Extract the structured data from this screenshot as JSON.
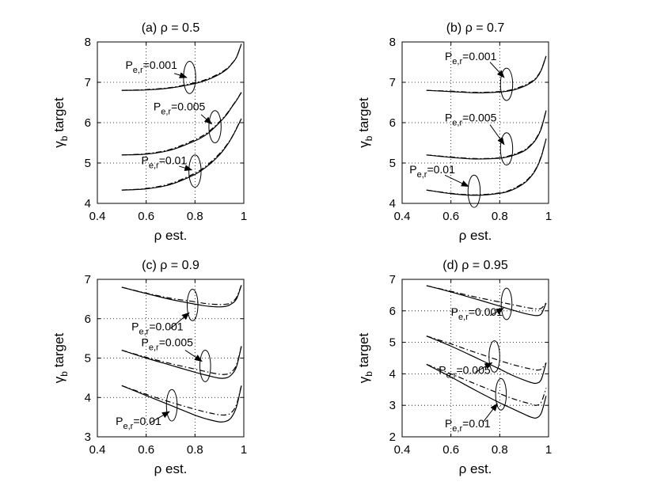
{
  "chart_data": [
    {
      "type": "line",
      "title": "(a) ρ = 0.5",
      "xlabel": "ρ est.",
      "ylabel": "target",
      "ylabel_symbol": "γ",
      "ylabel_sub": "b",
      "xlim": [
        0.4,
        1.0
      ],
      "ylim": [
        4,
        8
      ],
      "xticks": [
        "0.4",
        "0.6",
        "0.8",
        "1"
      ],
      "yticks": [
        "4",
        "5",
        "6",
        "7",
        "8"
      ],
      "grid": true,
      "series": [
        {
          "style": "solid",
          "x": [
            0.5,
            0.6,
            0.7,
            0.8,
            0.85,
            0.9,
            0.93,
            0.95,
            0.97,
            0.99
          ],
          "y": [
            6.8,
            6.81,
            6.86,
            6.97,
            7.06,
            7.2,
            7.32,
            7.45,
            7.62,
            7.95
          ]
        },
        {
          "style": "dashdot",
          "x": [
            0.5,
            0.6,
            0.7,
            0.8,
            0.85,
            0.9,
            0.93,
            0.95,
            0.97,
            0.99
          ],
          "y": [
            6.8,
            6.82,
            6.87,
            6.99,
            7.08,
            7.22,
            7.34,
            7.46,
            7.62,
            7.95
          ]
        },
        {
          "style": "solid",
          "x": [
            0.5,
            0.6,
            0.7,
            0.8,
            0.85,
            0.9,
            0.93,
            0.95,
            0.97,
            0.99
          ],
          "y": [
            5.2,
            5.22,
            5.32,
            5.55,
            5.72,
            6.0,
            6.2,
            6.38,
            6.55,
            6.75
          ]
        },
        {
          "style": "dashdot",
          "x": [
            0.5,
            0.6,
            0.7,
            0.8,
            0.85,
            0.9,
            0.93,
            0.95,
            0.97,
            0.99
          ],
          "y": [
            5.2,
            5.23,
            5.34,
            5.58,
            5.75,
            6.02,
            6.22,
            6.39,
            6.56,
            6.75
          ]
        },
        {
          "style": "solid",
          "x": [
            0.5,
            0.6,
            0.7,
            0.8,
            0.85,
            0.9,
            0.93,
            0.95,
            0.97,
            0.99
          ],
          "y": [
            4.33,
            4.36,
            4.47,
            4.72,
            4.92,
            5.2,
            5.43,
            5.62,
            5.85,
            6.1
          ]
        },
        {
          "style": "dashdot",
          "x": [
            0.5,
            0.6,
            0.7,
            0.8,
            0.85,
            0.9,
            0.93,
            0.95,
            0.97,
            0.99
          ],
          "y": [
            4.33,
            4.37,
            4.49,
            4.75,
            4.95,
            5.23,
            5.45,
            5.63,
            5.86,
            6.1
          ]
        }
      ],
      "annotations": [
        {
          "text": "=0.001",
          "sym": "P",
          "sub": "e,r",
          "tx": 0.515,
          "ty": 7.33,
          "ax1": 0.715,
          "ay1": 7.22,
          "ax2": 0.766,
          "ay2": 7.12,
          "ex": 0.778,
          "ey": 7.12,
          "erx": 0.025,
          "ery": 0.4
        },
        {
          "text": "=0.005",
          "sym": "P",
          "sub": "e,r",
          "tx": 0.63,
          "ty": 6.3,
          "ax1": 0.825,
          "ay1": 6.2,
          "ax2": 0.868,
          "ay2": 5.97,
          "ex": 0.882,
          "ey": 5.9,
          "erx": 0.025,
          "ery": 0.4
        },
        {
          "text": "=0.01",
          "sym": "P",
          "sub": "e,r",
          "tx": 0.58,
          "ty": 4.97,
          "ax1": 0.735,
          "ay1": 4.92,
          "ax2": 0.787,
          "ay2": 4.83,
          "ex": 0.8,
          "ey": 4.8,
          "erx": 0.025,
          "ery": 0.4
        }
      ]
    },
    {
      "type": "line",
      "title": "(b) ρ = 0.7",
      "xlabel": "ρ est.",
      "ylabel": "target",
      "ylabel_symbol": "γ",
      "ylabel_sub": "b",
      "xlim": [
        0.4,
        1.0
      ],
      "ylim": [
        4,
        8
      ],
      "xticks": [
        "0.4",
        "0.6",
        "0.8",
        "1"
      ],
      "yticks": [
        "4",
        "5",
        "6",
        "7",
        "8"
      ],
      "grid": true,
      "series": [
        {
          "style": "solid",
          "x": [
            0.5,
            0.6,
            0.7,
            0.8,
            0.85,
            0.9,
            0.93,
            0.95,
            0.97,
            0.99
          ],
          "y": [
            6.8,
            6.77,
            6.74,
            6.76,
            6.8,
            6.9,
            7.0,
            7.1,
            7.3,
            7.65
          ]
        },
        {
          "style": "dashdot",
          "x": [
            0.5,
            0.6,
            0.7,
            0.8,
            0.85,
            0.9,
            0.93,
            0.95,
            0.97,
            0.99
          ],
          "y": [
            6.8,
            6.78,
            6.75,
            6.77,
            6.82,
            6.92,
            7.02,
            7.12,
            7.31,
            7.65
          ]
        },
        {
          "style": "solid",
          "x": [
            0.5,
            0.6,
            0.7,
            0.8,
            0.85,
            0.9,
            0.93,
            0.95,
            0.97,
            0.99
          ],
          "y": [
            5.2,
            5.14,
            5.1,
            5.12,
            5.18,
            5.3,
            5.45,
            5.6,
            5.85,
            6.3
          ]
        },
        {
          "style": "dashdot",
          "x": [
            0.5,
            0.6,
            0.7,
            0.8,
            0.85,
            0.9,
            0.93,
            0.95,
            0.97,
            0.99
          ],
          "y": [
            5.2,
            5.15,
            5.11,
            5.13,
            5.2,
            5.32,
            5.47,
            5.62,
            5.87,
            6.3
          ]
        },
        {
          "style": "solid",
          "x": [
            0.5,
            0.6,
            0.7,
            0.8,
            0.85,
            0.9,
            0.93,
            0.95,
            0.97,
            0.99
          ],
          "y": [
            4.33,
            4.24,
            4.2,
            4.25,
            4.33,
            4.5,
            4.68,
            4.86,
            5.15,
            5.6
          ]
        },
        {
          "style": "dashdot",
          "x": [
            0.5,
            0.6,
            0.7,
            0.8,
            0.85,
            0.9,
            0.93,
            0.95,
            0.97,
            0.99
          ],
          "y": [
            4.33,
            4.25,
            4.21,
            4.26,
            4.35,
            4.52,
            4.7,
            4.88,
            5.17,
            5.6
          ]
        }
      ],
      "annotations": [
        {
          "text": "=0.001",
          "sym": "P",
          "sub": "e,r",
          "tx": 0.575,
          "ty": 7.55,
          "ax1": 0.76,
          "ay1": 7.5,
          "ax2": 0.818,
          "ay2": 7.12,
          "ex": 0.828,
          "ey": 6.95,
          "erx": 0.025,
          "ery": 0.4
        },
        {
          "text": "=0.005",
          "sym": "P",
          "sub": "e,r",
          "tx": 0.575,
          "ty": 6.03,
          "ax1": 0.76,
          "ay1": 5.95,
          "ax2": 0.818,
          "ay2": 5.46,
          "ex": 0.828,
          "ey": 5.35,
          "erx": 0.025,
          "ery": 0.4
        },
        {
          "text": "=0.01",
          "sym": "P",
          "sub": "e,r",
          "tx": 0.43,
          "ty": 4.75,
          "ax1": 0.575,
          "ay1": 4.7,
          "ax2": 0.672,
          "ay2": 4.42,
          "ex": 0.695,
          "ey": 4.3,
          "erx": 0.025,
          "ery": 0.4
        }
      ]
    },
    {
      "type": "line",
      "title": "(c) ρ = 0.9",
      "xlabel": "ρ est.",
      "ylabel": "target",
      "ylabel_symbol": "γ",
      "ylabel_sub": "b",
      "xlim": [
        0.4,
        1.0
      ],
      "ylim": [
        3,
        7
      ],
      "xticks": [
        "0.4",
        "0.6",
        "0.8",
        "1"
      ],
      "yticks": [
        "3",
        "4",
        "5",
        "6",
        "7"
      ],
      "grid": true,
      "series": [
        {
          "style": "solid",
          "x": [
            0.5,
            0.6,
            0.7,
            0.8,
            0.85,
            0.9,
            0.93,
            0.95,
            0.97,
            0.99
          ],
          "y": [
            6.8,
            6.64,
            6.49,
            6.37,
            6.32,
            6.3,
            6.32,
            6.38,
            6.5,
            6.85
          ]
        },
        {
          "style": "dashdot",
          "x": [
            0.5,
            0.6,
            0.7,
            0.8,
            0.85,
            0.9,
            0.93,
            0.95,
            0.97,
            0.99
          ],
          "y": [
            6.8,
            6.65,
            6.52,
            6.43,
            6.38,
            6.36,
            6.37,
            6.42,
            6.54,
            6.85
          ]
        },
        {
          "style": "solid",
          "x": [
            0.5,
            0.6,
            0.7,
            0.8,
            0.85,
            0.9,
            0.93,
            0.95,
            0.97,
            0.99
          ],
          "y": [
            5.2,
            5.0,
            4.82,
            4.64,
            4.56,
            4.49,
            4.5,
            4.58,
            4.78,
            5.3
          ]
        },
        {
          "style": "dashdot",
          "x": [
            0.5,
            0.6,
            0.7,
            0.8,
            0.85,
            0.9,
            0.93,
            0.95,
            0.97,
            0.99
          ],
          "y": [
            5.2,
            5.02,
            4.86,
            4.72,
            4.65,
            4.59,
            4.59,
            4.65,
            4.83,
            5.3
          ]
        },
        {
          "style": "solid",
          "x": [
            0.5,
            0.6,
            0.7,
            0.8,
            0.85,
            0.9,
            0.93,
            0.95,
            0.97,
            0.99
          ],
          "y": [
            4.3,
            4.05,
            3.8,
            3.55,
            3.45,
            3.38,
            3.4,
            3.5,
            3.76,
            4.3
          ]
        },
        {
          "style": "dashdot",
          "x": [
            0.5,
            0.6,
            0.7,
            0.8,
            0.85,
            0.9,
            0.93,
            0.95,
            0.97,
            0.99
          ],
          "y": [
            4.3,
            4.08,
            3.88,
            3.7,
            3.62,
            3.56,
            3.56,
            3.62,
            3.82,
            4.3
          ]
        }
      ],
      "annotations": [
        {
          "text": "=0.001",
          "sym": "P",
          "sub": "e,r",
          "tx": 0.54,
          "ty": 5.7,
          "ax1": 0.7,
          "ay1": 5.75,
          "ax2": 0.776,
          "ay2": 6.15,
          "ex": 0.79,
          "ey": 6.35,
          "erx": 0.022,
          "ery": 0.4
        },
        {
          "text": "=0.005",
          "sym": "P",
          "sub": "e,r",
          "tx": 0.58,
          "ty": 5.3,
          "ax1": 0.76,
          "ay1": 5.2,
          "ax2": 0.828,
          "ay2": 4.92,
          "ex": 0.842,
          "ey": 4.8,
          "erx": 0.022,
          "ery": 0.4
        },
        {
          "text": "=0.01",
          "sym": "P",
          "sub": "e,r",
          "tx": 0.475,
          "ty": 3.3,
          "ax1": 0.615,
          "ay1": 3.35,
          "ax2": 0.695,
          "ay2": 3.64,
          "ex": 0.705,
          "ey": 3.8,
          "erx": 0.022,
          "ery": 0.4
        }
      ]
    },
    {
      "type": "line",
      "title": "(d) ρ = 0.95",
      "xlabel": "ρ est.",
      "ylabel": "target",
      "ylabel_symbol": "γ",
      "ylabel_sub": "b",
      "xlim": [
        0.4,
        1.0
      ],
      "ylim": [
        2,
        7
      ],
      "xticks": [
        "0.4",
        "0.6",
        "0.8",
        "1"
      ],
      "yticks": [
        "2",
        "3",
        "4",
        "5",
        "6",
        "7"
      ],
      "grid": true,
      "series": [
        {
          "style": "solid",
          "x": [
            0.5,
            0.6,
            0.7,
            0.8,
            0.85,
            0.9,
            0.93,
            0.95,
            0.97,
            0.99
          ],
          "y": [
            6.8,
            6.6,
            6.38,
            6.15,
            6.03,
            5.92,
            5.87,
            5.85,
            5.9,
            6.25
          ]
        },
        {
          "style": "dashdot",
          "x": [
            0.5,
            0.6,
            0.7,
            0.8,
            0.85,
            0.9,
            0.93,
            0.95,
            0.97,
            0.99
          ],
          "y": [
            6.8,
            6.62,
            6.44,
            6.28,
            6.2,
            6.12,
            6.08,
            6.06,
            6.08,
            6.25
          ]
        },
        {
          "style": "solid",
          "x": [
            0.5,
            0.6,
            0.7,
            0.8,
            0.85,
            0.9,
            0.93,
            0.95,
            0.97,
            0.99
          ],
          "y": [
            5.2,
            4.88,
            4.52,
            4.15,
            3.96,
            3.8,
            3.72,
            3.7,
            3.82,
            4.35
          ]
        },
        {
          "style": "dashdot",
          "x": [
            0.5,
            0.6,
            0.7,
            0.8,
            0.85,
            0.9,
            0.93,
            0.95,
            0.97,
            0.99
          ],
          "y": [
            5.2,
            4.95,
            4.68,
            4.42,
            4.3,
            4.2,
            4.15,
            4.12,
            4.15,
            4.35
          ]
        },
        {
          "style": "solid",
          "x": [
            0.5,
            0.6,
            0.7,
            0.8,
            0.85,
            0.9,
            0.93,
            0.95,
            0.97,
            0.99
          ],
          "y": [
            4.3,
            3.9,
            3.48,
            3.08,
            2.9,
            2.72,
            2.62,
            2.6,
            2.75,
            3.3
          ]
        },
        {
          "style": "dashdot",
          "x": [
            0.5,
            0.6,
            0.7,
            0.8,
            0.85,
            0.9,
            0.93,
            0.95,
            0.97,
            0.99
          ],
          "y": [
            4.3,
            4.0,
            3.68,
            3.37,
            3.22,
            3.1,
            3.04,
            3.0,
            3.1,
            3.55
          ]
        }
      ],
      "annotations": [
        {
          "text": "=0.001",
          "sym": "P",
          "sub": "e,r",
          "tx": 0.6,
          "ty": 5.85,
          "ax1": 0.76,
          "ay1": 5.85,
          "ax2": 0.815,
          "ay2": 6.08,
          "ex": 0.828,
          "ey": 6.22,
          "erx": 0.022,
          "ery": 0.5
        },
        {
          "text": "=0.005",
          "sym": "P",
          "sub": "e,r",
          "tx": 0.55,
          "ty": 4.0,
          "ax1": 0.7,
          "ay1": 4.05,
          "ax2": 0.768,
          "ay2": 4.35,
          "ex": 0.778,
          "ey": 4.55,
          "erx": 0.022,
          "ery": 0.5
        },
        {
          "text": "=0.01",
          "sym": "P",
          "sub": "e,r",
          "tx": 0.575,
          "ty": 2.3,
          "ax1": 0.73,
          "ay1": 2.45,
          "ax2": 0.79,
          "ay2": 3.05,
          "ex": 0.805,
          "ey": 3.35,
          "erx": 0.022,
          "ery": 0.5
        }
      ]
    }
  ]
}
